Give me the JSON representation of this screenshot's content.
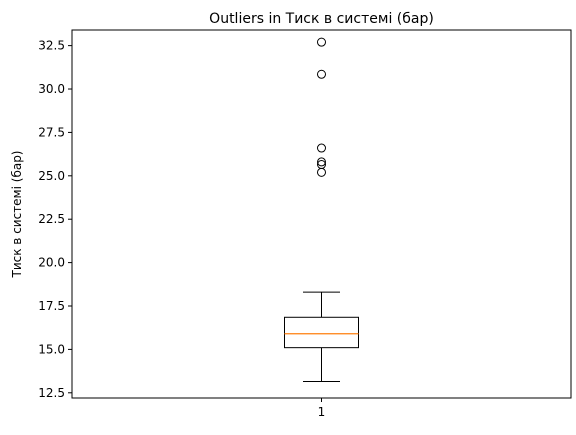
{
  "chart_data": {
    "type": "box",
    "title": "Outliers in Тиск в системі (бар)",
    "xlabel": "",
    "ylabel": "Тиск в системі (бар)",
    "ylim": [
      12.2,
      33.4
    ],
    "y_ticks": [
      12.5,
      15.0,
      17.5,
      20.0,
      22.5,
      25.0,
      27.5,
      30.0,
      32.5
    ],
    "y_tick_labels": [
      "12.5",
      "15.0",
      "17.5",
      "20.0",
      "22.5",
      "25.0",
      "27.5",
      "30.0",
      "32.5"
    ],
    "categories": [
      "1"
    ],
    "boxes": [
      {
        "category": "1",
        "whisker_low": 13.15,
        "q1": 15.1,
        "median": 15.9,
        "q3": 16.85,
        "whisker_high": 18.3,
        "outliers": [
          25.2,
          25.65,
          25.8,
          26.6,
          30.85,
          32.7
        ]
      }
    ],
    "grid": false,
    "colors": {
      "box": "#000000",
      "median": "#ff7f0e",
      "outlier": "#000000"
    }
  }
}
